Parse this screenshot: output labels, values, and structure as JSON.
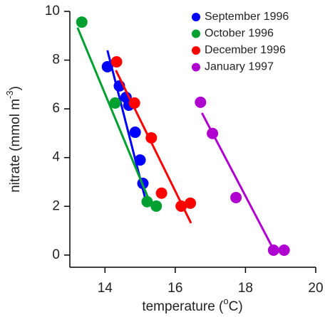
{
  "chart_data": {
    "type": "scatter",
    "xlabel": [
      "temperature (",
      "o",
      "C)"
    ],
    "ylabel": [
      "nitrate (mmol m",
      "-3",
      ")"
    ],
    "xlim": [
      13,
      20
    ],
    "ylim": [
      -0.5,
      10
    ],
    "xticks": [
      14,
      16,
      18,
      20
    ],
    "yticks": [
      0,
      2,
      4,
      6,
      8,
      10
    ],
    "legend": "top-right",
    "series": [
      {
        "name": "September 1996",
        "color": "#0000ff",
        "x": [
          14.07,
          14.41,
          14.6,
          14.68,
          14.86,
          15.0,
          15.08
        ],
        "values": [
          7.73,
          6.94,
          6.47,
          6.15,
          5.04,
          3.9,
          2.94
        ],
        "fit_x": [
          14.07,
          15.16
        ],
        "fit_y": [
          8.4,
          2.24
        ]
      },
      {
        "name": "October 1996",
        "color": "#00a030",
        "x": [
          13.34,
          14.29,
          15.2,
          15.46
        ],
        "values": [
          9.56,
          6.24,
          2.19,
          2.01
        ],
        "fit_x": [
          13.22,
          15.3
        ],
        "fit_y": [
          9.33,
          2.1
        ]
      },
      {
        "name": "December 1996",
        "color": "#ff0000",
        "x": [
          14.33,
          14.84,
          15.32,
          15.61,
          16.17,
          16.43
        ],
        "values": [
          7.93,
          6.24,
          4.81,
          2.54,
          2.01,
          2.13
        ],
        "fit_x": [
          14.31,
          16.45
        ],
        "fit_y": [
          7.58,
          1.31
        ]
      },
      {
        "name": "January 1997",
        "color": "#b000d0",
        "x": [
          16.72,
          17.06,
          17.73,
          18.8,
          19.1
        ],
        "values": [
          6.27,
          4.99,
          2.36,
          0.2,
          0.2
        ],
        "fit_x": [
          16.76,
          18.86
        ],
        "fit_y": [
          5.83,
          0.06
        ]
      }
    ]
  }
}
